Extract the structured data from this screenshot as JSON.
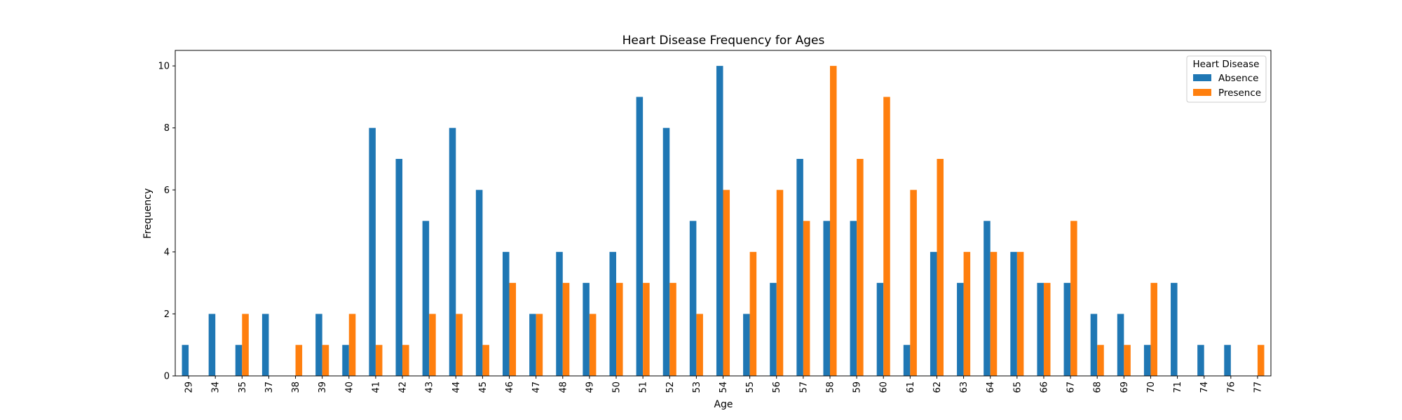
{
  "chart_data": {
    "type": "bar",
    "title": "Heart Disease Frequency for Ages",
    "xlabel": "Age",
    "ylabel": "Frequency",
    "ylim": [
      0,
      10.5
    ],
    "yticks": [
      0,
      2,
      4,
      6,
      8,
      10
    ],
    "categories": [
      "29",
      "34",
      "35",
      "37",
      "38",
      "39",
      "40",
      "41",
      "42",
      "43",
      "44",
      "45",
      "46",
      "47",
      "48",
      "49",
      "50",
      "51",
      "52",
      "53",
      "54",
      "55",
      "56",
      "57",
      "58",
      "59",
      "60",
      "61",
      "62",
      "63",
      "64",
      "65",
      "66",
      "67",
      "68",
      "69",
      "70",
      "71",
      "74",
      "76",
      "77"
    ],
    "legend_title": "Heart Disease",
    "legend_position": "top-right",
    "grid": false,
    "series": [
      {
        "name": "Absence",
        "color": "#1f77b4",
        "values": [
          1,
          2,
          1,
          2,
          0,
          2,
          1,
          8,
          7,
          5,
          8,
          6,
          4,
          2,
          4,
          3,
          4,
          9,
          8,
          5,
          10,
          2,
          3,
          7,
          5,
          5,
          3,
          1,
          4,
          3,
          5,
          4,
          3,
          3,
          2,
          2,
          1,
          3,
          1,
          1,
          0
        ]
      },
      {
        "name": "Presence",
        "color": "#ff7f0e",
        "values": [
          0,
          0,
          2,
          0,
          1,
          1,
          2,
          1,
          1,
          2,
          2,
          1,
          3,
          2,
          3,
          2,
          3,
          3,
          3,
          2,
          6,
          4,
          6,
          5,
          10,
          7,
          9,
          6,
          7,
          4,
          4,
          4,
          3,
          5,
          1,
          1,
          3,
          0,
          0,
          0,
          1
        ]
      }
    ]
  }
}
